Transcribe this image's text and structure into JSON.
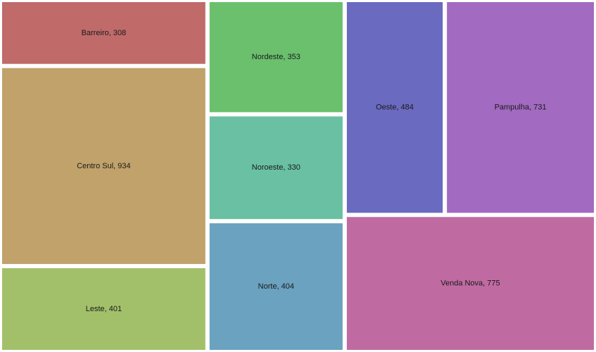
{
  "chart_data": {
    "type": "treemap",
    "title": "",
    "items": [
      {
        "name": "Barreiro",
        "value": 308,
        "color": "#c06a6a",
        "label": "Barreiro, 308"
      },
      {
        "name": "Centro Sul",
        "value": 934,
        "color": "#c0a26a",
        "label": "Centro Sul, 934"
      },
      {
        "name": "Leste",
        "value": 401,
        "color": "#a2c06a",
        "label": "Leste, 401"
      },
      {
        "name": "Nordeste",
        "value": 353,
        "color": "#6ac06d",
        "label": "Nordeste, 353"
      },
      {
        "name": "Noroeste",
        "value": 330,
        "color": "#6ac0a2",
        "label": "Noroeste, 330"
      },
      {
        "name": "Norte",
        "value": 404,
        "color": "#6aa2c0",
        "label": "Norte, 404"
      },
      {
        "name": "Oeste",
        "value": 484,
        "color": "#6a6ac0",
        "label": "Oeste, 484"
      },
      {
        "name": "Pampulha",
        "value": 731,
        "color": "#a26ac0",
        "label": "Pampulha, 731"
      },
      {
        "name": "Venda Nova",
        "value": 775,
        "color": "#c06aa2",
        "label": "Venda Nova, 775"
      }
    ]
  }
}
